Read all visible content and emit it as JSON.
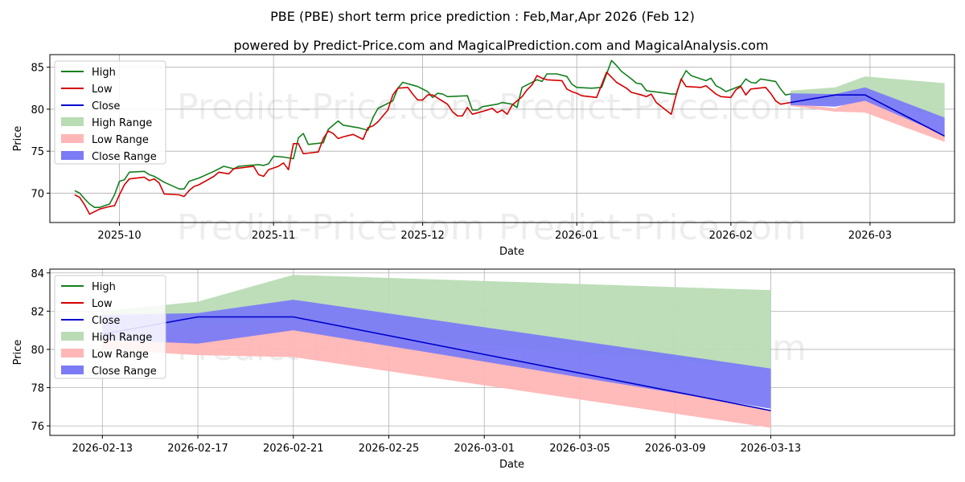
{
  "title": "PBE (PBE) short term price prediction : Feb,Mar,Apr 2026 (Feb 12)",
  "subtitle": "powered by Predict-Price.com and MagicalPrediction.com and MagicalAnalysis.com",
  "watermark": "Predict-Price.com",
  "colors": {
    "high": "#157f1f",
    "low": "#d40000",
    "close": "#0000cc",
    "high_range": "#b9dcb5",
    "low_range": "#ffb6b6",
    "close_range": "#7b7bf5"
  },
  "chart_data": [
    {
      "type": "line",
      "id": "history",
      "xlabel": "Date",
      "ylabel": "Price",
      "xlim": [
        0,
        182
      ],
      "ylim": [
        66.5,
        86.5
      ],
      "xticks": [
        {
          "x": 14,
          "label": "2025-10"
        },
        {
          "x": 45,
          "label": "2025-11"
        },
        {
          "x": 75,
          "label": "2025-12"
        },
        {
          "x": 106,
          "label": "2026-01"
        },
        {
          "x": 137,
          "label": "2026-02"
        },
        {
          "x": 165,
          "label": "2026-03"
        }
      ],
      "yticks": [
        70,
        75,
        80,
        85
      ],
      "legend": [
        "High",
        "Low",
        "Close",
        "High Range",
        "Low Range",
        "Close Range"
      ],
      "legend_position": "top-left",
      "grid": true,
      "series": [
        {
          "name": "High",
          "points": [
            [
              5,
              70.3
            ],
            [
              6,
              70.0
            ],
            [
              7,
              69.3
            ],
            [
              8,
              68.7
            ],
            [
              9,
              68.3
            ],
            [
              10,
              68.3
            ],
            [
              12,
              68.7
            ],
            [
              13,
              69.8
            ],
            [
              14,
              71.4
            ],
            [
              15,
              71.6
            ],
            [
              16,
              72.5
            ],
            [
              19,
              72.6
            ],
            [
              20,
              72.2
            ],
            [
              21,
              72.0
            ],
            [
              23,
              71.3
            ],
            [
              26,
              70.5
            ],
            [
              27,
              70.5
            ],
            [
              28,
              71.4
            ],
            [
              30,
              71.8
            ],
            [
              33,
              72.6
            ],
            [
              35,
              73.2
            ],
            [
              37,
              72.9
            ],
            [
              38,
              73.2
            ],
            [
              42,
              73.4
            ],
            [
              43,
              73.3
            ],
            [
              44,
              73.5
            ],
            [
              45,
              74.4
            ],
            [
              47,
              74.3
            ],
            [
              48,
              74.2
            ],
            [
              49,
              74.1
            ],
            [
              50,
              76.6
            ],
            [
              51,
              77.1
            ],
            [
              52,
              75.8
            ],
            [
              55,
              76.0
            ],
            [
              56,
              77.6
            ],
            [
              58,
              78.6
            ],
            [
              59,
              78.1
            ],
            [
              62,
              77.8
            ],
            [
              64,
              77.5
            ],
            [
              65,
              79.0
            ],
            [
              66,
              80.1
            ],
            [
              69,
              81.0
            ],
            [
              70,
              82.5
            ],
            [
              71,
              83.2
            ],
            [
              74,
              82.7
            ],
            [
              76,
              82.1
            ],
            [
              77,
              81.4
            ],
            [
              78,
              81.9
            ],
            [
              79,
              81.8
            ],
            [
              80,
              81.5
            ],
            [
              84,
              81.6
            ],
            [
              85,
              79.9
            ],
            [
              86,
              79.9
            ],
            [
              87,
              80.3
            ],
            [
              90,
              80.6
            ],
            [
              91,
              80.8
            ],
            [
              93,
              80.6
            ],
            [
              94,
              80.2
            ],
            [
              95,
              82.6
            ],
            [
              98,
              83.5
            ],
            [
              99,
              83.3
            ],
            [
              100,
              84.2
            ],
            [
              102,
              84.2
            ],
            [
              104,
              83.9
            ],
            [
              105,
              83.0
            ],
            [
              106,
              82.6
            ],
            [
              109,
              82.5
            ],
            [
              111,
              82.6
            ],
            [
              113,
              85.8
            ],
            [
              114,
              85.2
            ],
            [
              115,
              84.5
            ],
            [
              117,
              83.6
            ],
            [
              118,
              83.1
            ],
            [
              119,
              83.0
            ],
            [
              120,
              82.2
            ],
            [
              124,
              81.9
            ],
            [
              125,
              81.8
            ],
            [
              126,
              81.8
            ],
            [
              127,
              83.5
            ],
            [
              128,
              84.6
            ],
            [
              129,
              84.0
            ],
            [
              132,
              83.4
            ],
            [
              133,
              83.7
            ],
            [
              134,
              82.8
            ],
            [
              135,
              82.5
            ],
            [
              136,
              82.1
            ],
            [
              139,
              82.8
            ],
            [
              140,
              83.6
            ],
            [
              141,
              83.2
            ],
            [
              142,
              83.1
            ],
            [
              143,
              83.6
            ],
            [
              146,
              83.3
            ],
            [
              147,
              82.4
            ],
            [
              148,
              81.7
            ],
            [
              149,
              81.8
            ]
          ]
        },
        {
          "name": "Low",
          "points": [
            [
              5,
              69.8
            ],
            [
              6,
              69.5
            ],
            [
              7,
              68.6
            ],
            [
              8,
              67.5
            ],
            [
              9,
              67.8
            ],
            [
              10,
              68.1
            ],
            [
              12,
              68.4
            ],
            [
              13,
              68.5
            ],
            [
              14,
              69.8
            ],
            [
              15,
              71.0
            ],
            [
              16,
              71.7
            ],
            [
              19,
              71.9
            ],
            [
              20,
              71.5
            ],
            [
              21,
              71.7
            ],
            [
              22,
              71.2
            ],
            [
              23,
              69.9
            ],
            [
              26,
              69.8
            ],
            [
              27,
              69.6
            ],
            [
              28,
              70.3
            ],
            [
              29,
              70.8
            ],
            [
              30,
              71.0
            ],
            [
              33,
              72.0
            ],
            [
              34,
              72.5
            ],
            [
              36,
              72.3
            ],
            [
              37,
              72.9
            ],
            [
              41,
              73.2
            ],
            [
              42,
              72.2
            ],
            [
              43,
              72.0
            ],
            [
              44,
              72.8
            ],
            [
              46,
              73.2
            ],
            [
              47,
              73.6
            ],
            [
              48,
              72.8
            ],
            [
              49,
              75.9
            ],
            [
              50,
              75.9
            ],
            [
              51,
              74.7
            ],
            [
              54,
              74.9
            ],
            [
              55,
              76.5
            ],
            [
              56,
              77.4
            ],
            [
              57,
              77.1
            ],
            [
              58,
              76.5
            ],
            [
              59,
              76.7
            ],
            [
              61,
              77.0
            ],
            [
              62,
              76.7
            ],
            [
              63,
              76.4
            ],
            [
              64,
              77.8
            ],
            [
              65,
              78.0
            ],
            [
              66,
              78.5
            ],
            [
              68,
              79.9
            ],
            [
              69,
              81.7
            ],
            [
              70,
              82.5
            ],
            [
              72,
              82.6
            ],
            [
              73,
              81.8
            ],
            [
              74,
              81.1
            ],
            [
              75,
              81.1
            ],
            [
              76,
              81.7
            ],
            [
              77,
              81.7
            ],
            [
              80,
              80.6
            ],
            [
              81,
              79.7
            ],
            [
              82,
              79.2
            ],
            [
              83,
              79.2
            ],
            [
              84,
              80.2
            ],
            [
              85,
              79.4
            ],
            [
              88,
              79.9
            ],
            [
              89,
              80.1
            ],
            [
              90,
              79.6
            ],
            [
              91,
              79.9
            ],
            [
              92,
              79.4
            ],
            [
              93,
              80.5
            ],
            [
              95,
              81.5
            ],
            [
              96,
              82.3
            ],
            [
              97,
              82.9
            ],
            [
              98,
              84.0
            ],
            [
              99,
              83.7
            ],
            [
              100,
              83.5
            ],
            [
              103,
              83.4
            ],
            [
              104,
              82.4
            ],
            [
              105,
              82.1
            ],
            [
              106,
              81.9
            ],
            [
              107,
              81.6
            ],
            [
              110,
              81.4
            ],
            [
              111,
              82.9
            ],
            [
              112,
              84.4
            ],
            [
              113,
              83.8
            ],
            [
              114,
              83.2
            ],
            [
              116,
              82.5
            ],
            [
              117,
              82.0
            ],
            [
              119,
              81.7
            ],
            [
              120,
              81.5
            ],
            [
              121,
              81.8
            ],
            [
              122,
              80.8
            ],
            [
              125,
              79.4
            ],
            [
              126,
              81.7
            ],
            [
              127,
              83.6
            ],
            [
              128,
              82.7
            ],
            [
              131,
              82.6
            ],
            [
              132,
              82.8
            ],
            [
              133,
              82.3
            ],
            [
              134,
              81.8
            ],
            [
              135,
              81.5
            ],
            [
              137,
              81.4
            ],
            [
              138,
              82.3
            ],
            [
              139,
              82.7
            ],
            [
              140,
              81.7
            ],
            [
              141,
              82.4
            ],
            [
              144,
              82.6
            ],
            [
              145,
              81.9
            ],
            [
              146,
              81.0
            ],
            [
              147,
              80.6
            ],
            [
              149,
              80.8
            ]
          ]
        },
        {
          "name": "Close",
          "points": []
        }
      ],
      "forecast": {
        "x": [
          149,
          158,
          164,
          180
        ],
        "close": [
          80.8,
          81.7,
          81.7,
          76.8
        ],
        "high_range": [
          [
            80.8,
            82.2
          ],
          [
            80.6,
            82.6
          ],
          [
            81.0,
            83.9
          ],
          [
            79.0,
            83.1
          ]
        ],
        "low_range": [
          [
            80.4,
            80.7
          ],
          [
            79.7,
            80.1
          ],
          [
            79.6,
            81.6
          ],
          [
            76.1,
            76.8
          ]
        ],
        "close_range": [
          [
            80.5,
            81.9
          ],
          [
            80.3,
            81.8
          ],
          [
            81.0,
            82.6
          ],
          [
            76.9,
            79.0
          ]
        ]
      }
    },
    {
      "type": "line",
      "id": "forecast-zoom",
      "xlabel": "Date",
      "ylabel": "Price",
      "xlim": [
        -2.2,
        35.7
      ],
      "ylim": [
        75.5,
        84.2
      ],
      "xticks": [
        {
          "x": 0,
          "label": "2026-02-13"
        },
        {
          "x": 4,
          "label": "2026-02-17"
        },
        {
          "x": 8,
          "label": "2026-02-21"
        },
        {
          "x": 12,
          "label": "2026-02-25"
        },
        {
          "x": 16,
          "label": "2026-03-01"
        },
        {
          "x": 20,
          "label": "2026-03-05"
        },
        {
          "x": 24,
          "label": "2026-03-09"
        },
        {
          "x": 28,
          "label": "2026-03-13"
        }
      ],
      "yticks": [
        76,
        78,
        80,
        82,
        84
      ],
      "legend": [
        "High",
        "Low",
        "Close",
        "High Range",
        "Low Range",
        "Close Range"
      ],
      "legend_position": "top-left",
      "grid": true,
      "forecast": {
        "x": [
          0,
          4,
          8,
          28
        ],
        "close": [
          80.8,
          81.7,
          81.7,
          76.8
        ],
        "high_range": [
          [
            80.8,
            82.0
          ],
          [
            80.6,
            82.5
          ],
          [
            81.0,
            83.9
          ],
          [
            79.0,
            83.1
          ]
        ],
        "low_range": [
          [
            80.0,
            80.7
          ],
          [
            79.7,
            81.2
          ],
          [
            79.6,
            81.6
          ],
          [
            75.9,
            76.8
          ]
        ],
        "close_range": [
          [
            80.5,
            81.8
          ],
          [
            80.3,
            81.9
          ],
          [
            81.0,
            82.6
          ],
          [
            76.9,
            79.0
          ]
        ]
      }
    }
  ]
}
